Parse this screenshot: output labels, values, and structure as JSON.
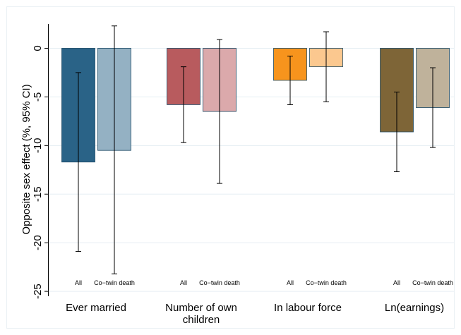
{
  "chart_data": {
    "type": "bar",
    "title": "",
    "xlabel": "",
    "ylabel": "Opposite sex effect (%, 95% CI)",
    "ylim": [
      -25.5,
      2.5
    ],
    "yticks": [
      0,
      -5,
      -10,
      -15,
      -20,
      -25
    ],
    "grid": true,
    "legend": "none",
    "subcategories": [
      "All",
      "Co−twin death"
    ],
    "groups": [
      {
        "label": [
          "Ever married"
        ],
        "bars": [
          {
            "sub": "All",
            "value": -11.7,
            "ci_low": -20.9,
            "ci_high": -2.5,
            "color": "#2a6387"
          },
          {
            "sub": "Co−twin death",
            "value": -10.5,
            "ci_low": -23.2,
            "ci_high": 2.3,
            "color": "#94b1c3"
          }
        ]
      },
      {
        "label": [
          "Number of own",
          "children"
        ],
        "bars": [
          {
            "sub": "All",
            "value": -5.8,
            "ci_low": -9.7,
            "ci_high": -1.9,
            "color": "#b85b5e"
          },
          {
            "sub": "Co−twin death",
            "value": -6.5,
            "ci_low": -13.9,
            "ci_high": 0.9,
            "color": "#dba9ab"
          }
        ]
      },
      {
        "label": [
          "In labour force"
        ],
        "bars": [
          {
            "sub": "All",
            "value": -3.3,
            "ci_low": -5.8,
            "ci_high": -0.8,
            "color": "#f7941d"
          },
          {
            "sub": "Co−twin death",
            "value": -1.9,
            "ci_low": -5.5,
            "ci_high": 1.7,
            "color": "#fbc88f"
          }
        ]
      },
      {
        "label": [
          "Ln(earnings)"
        ],
        "bars": [
          {
            "sub": "All",
            "value": -8.6,
            "ci_low": -12.7,
            "ci_high": -4.5,
            "color": "#7e6537"
          },
          {
            "sub": "Co−twin death",
            "value": -6.1,
            "ci_low": -10.2,
            "ci_high": -2.0,
            "color": "#bfb29b"
          }
        ]
      }
    ],
    "colors": {
      "grid": "#e6eef3",
      "axis": "#000000",
      "error_bar": "#000000",
      "frame": "#eaf0f4"
    }
  }
}
